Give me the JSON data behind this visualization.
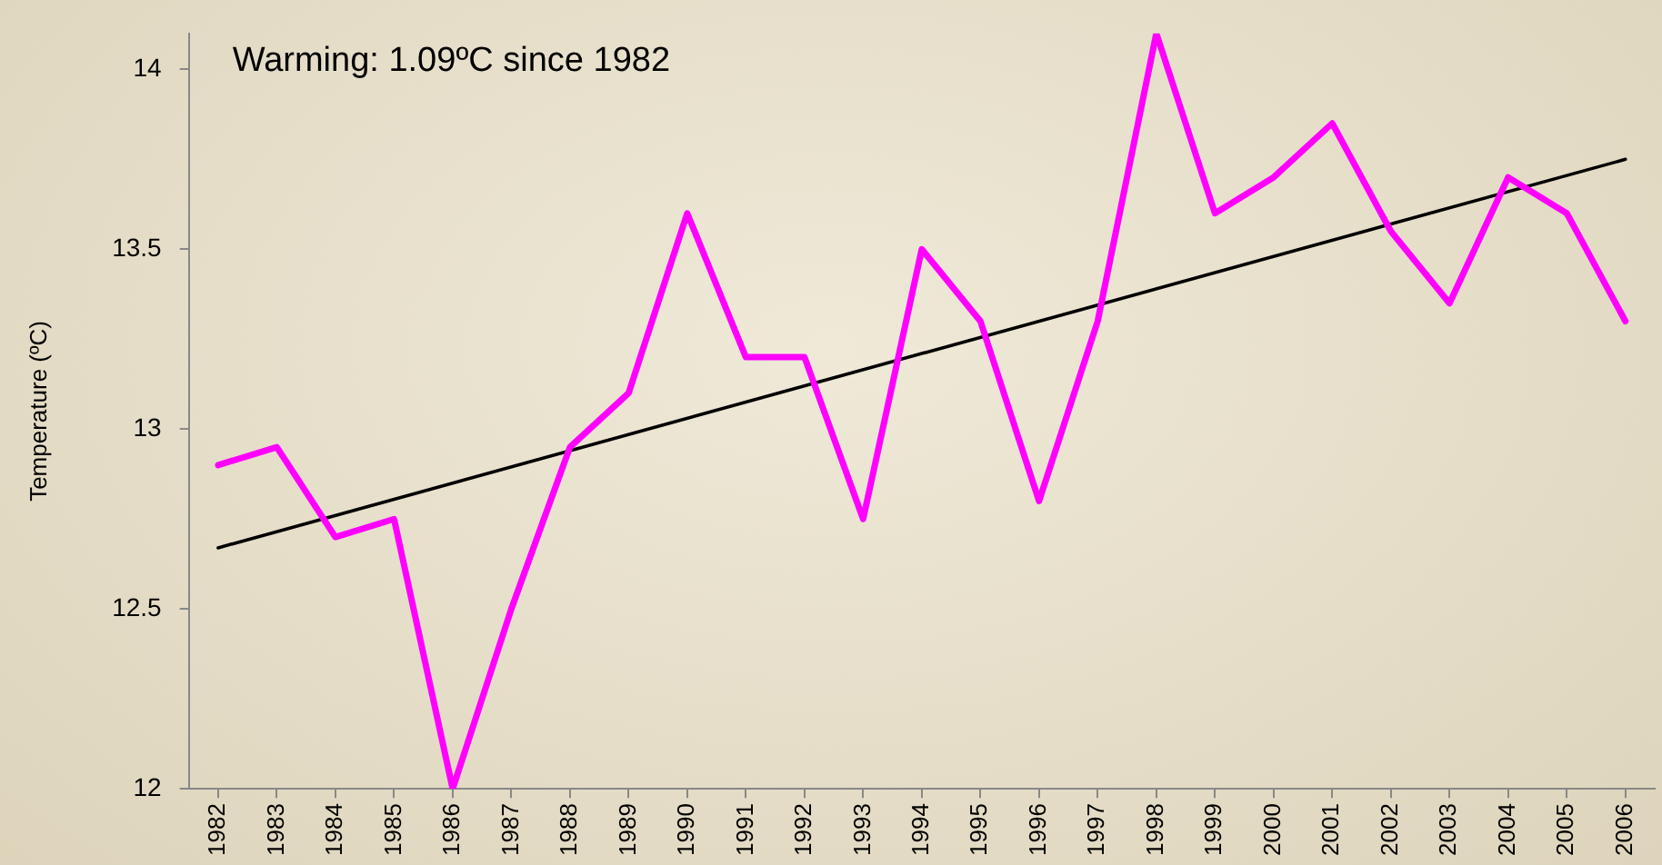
{
  "chart_data": {
    "type": "line",
    "ylabel": "Temperature (ºC)",
    "annotations": [
      "Warming: 1.09ºC since 1982"
    ],
    "xlim": [
      1981.5,
      2006.5
    ],
    "xticks": [
      1982,
      1983,
      1984,
      1985,
      1986,
      1987,
      1988,
      1989,
      1990,
      1991,
      1992,
      1993,
      1994,
      1995,
      1996,
      1997,
      1998,
      1999,
      2000,
      2001,
      2002,
      2003,
      2004,
      2005,
      2006
    ],
    "ylim": [
      12,
      14.1
    ],
    "yticks": [
      12,
      12.5,
      13,
      13.5,
      14
    ],
    "grid": false,
    "legend": false,
    "marker": "none",
    "series": [
      {
        "color": "#ff00ff",
        "x": [
          1982,
          1983,
          1984,
          1985,
          1986,
          1987,
          1988,
          1989,
          1990,
          1991,
          1992,
          1993,
          1994,
          1995,
          1996,
          1997,
          1998,
          1999,
          2000,
          2001,
          2002,
          2003,
          2004,
          2005,
          2006
        ],
        "values": [
          12.9,
          12.95,
          12.7,
          12.75,
          12.0,
          12.5,
          12.95,
          13.1,
          13.6,
          13.2,
          13.2,
          12.75,
          13.5,
          13.3,
          12.8,
          13.3,
          14.1,
          13.6,
          13.7,
          13.85,
          13.55,
          13.35,
          13.7,
          13.6,
          13.3
        ]
      },
      {
        "color": "#000000",
        "x": [
          1982,
          2006
        ],
        "values": [
          12.67,
          13.75
        ]
      }
    ]
  }
}
